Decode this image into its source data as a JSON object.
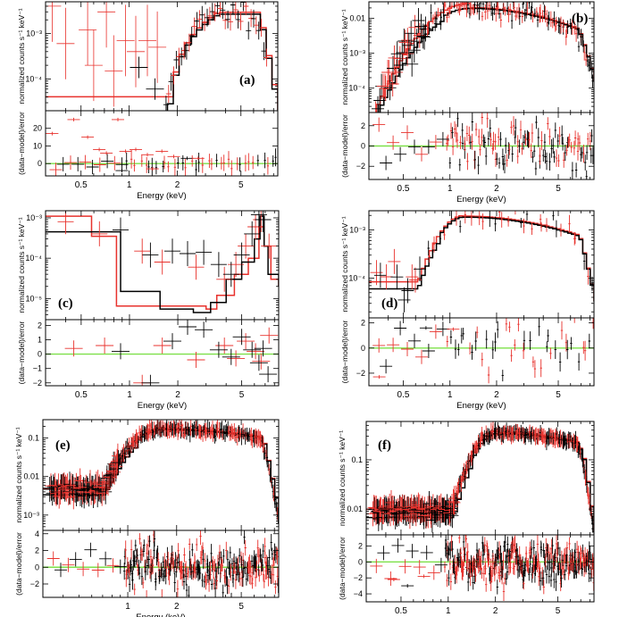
{
  "figure": {
    "common": {
      "ylabel_top": "normalized counts s⁻¹ keV⁻¹",
      "ylabel_bottom": "(data−model)/error",
      "xlabel": "Energy (keV)",
      "model_color": "#000000",
      "data2_color": "#e8322d",
      "zero_line_color": "#7ee04a"
    }
  },
  "chart_data": [
    {
      "id": "a",
      "label": "(a)",
      "type": "scatter",
      "x_scale": "log",
      "xlim": [
        0.3,
        8.5
      ],
      "x_ticks": [
        {
          "v": 0.5,
          "t": "0.5"
        },
        {
          "v": 1,
          "t": "1"
        },
        {
          "v": 2,
          "t": "2"
        },
        {
          "v": 5,
          "t": "5"
        }
      ],
      "top": {
        "y_scale": "log",
        "ylim": [
          2e-05,
          0.005
        ],
        "y_ticks": [
          {
            "v": 0.001,
            "t": "10⁻³"
          },
          {
            "v": 0.0001,
            "t": "10⁻⁴"
          }
        ]
      },
      "bottom": {
        "ylim": [
          -7,
          30
        ],
        "y_ticks": [
          {
            "v": 0,
            "t": "0"
          },
          {
            "v": 10,
            "t": "10"
          },
          {
            "v": 20,
            "t": "20"
          }
        ]
      },
      "spectrum": {
        "kind": "cut",
        "lo": 1.7,
        "hi": 3.5,
        "peak": 0.0028,
        "edge": 6.3,
        "drop": 7.5,
        "floor": 3e-05,
        "n": 40,
        "seed": 11,
        "noise": 0.35
      },
      "residuals": {
        "sigma": 1.5,
        "n": 36,
        "seed": 5,
        "outliers": [
          [
            0.33,
            17
          ],
          [
            0.45,
            25
          ],
          [
            0.55,
            15
          ],
          [
            0.65,
            8
          ],
          [
            0.72,
            6
          ],
          [
            0.85,
            25
          ],
          [
            0.95,
            7
          ],
          [
            1.1,
            8
          ],
          [
            1.3,
            5
          ],
          [
            1.6,
            7
          ],
          [
            1.9,
            4
          ],
          [
            2.3,
            3
          ],
          [
            2.7,
            3
          ],
          [
            0.9,
            -4
          ],
          [
            1.4,
            -3
          ]
        ]
      }
    },
    {
      "id": "b",
      "label": "(b)",
      "type": "scatter",
      "x_scale": "log",
      "xlim": [
        0.3,
        8.5
      ],
      "x_ticks": [
        {
          "v": 0.5,
          "t": "0.5"
        },
        {
          "v": 1,
          "t": "1"
        },
        {
          "v": 2,
          "t": "2"
        },
        {
          "v": 5,
          "t": "5"
        }
      ],
      "top": {
        "y_scale": "log",
        "ylim": [
          2e-05,
          0.03
        ],
        "y_ticks": [
          {
            "v": 0.01,
            "t": "0.01"
          },
          {
            "v": 0.001,
            "t": "10⁻³"
          },
          {
            "v": 0.0001,
            "t": "10⁻⁴"
          }
        ]
      },
      "bottom": {
        "ylim": [
          -3.3,
          3.3
        ],
        "y_ticks": [
          {
            "v": -2,
            "t": "−2"
          },
          {
            "v": 0,
            "t": "0"
          },
          {
            "v": 2,
            "t": "2"
          }
        ]
      },
      "spectrum": {
        "kind": "hump",
        "peak_e": 1.3,
        "peak": 0.02,
        "lo_w": 0.55,
        "hi_w": 1.15,
        "cut": 7.8,
        "n": 150,
        "seed": 23,
        "noise": 0.3,
        "red_factor": 1.35
      },
      "residuals": {
        "sigma": 1.3,
        "n": 120,
        "seed": 9,
        "outliers": []
      }
    },
    {
      "id": "c",
      "label": "(c)",
      "type": "scatter",
      "x_scale": "log",
      "xlim": [
        0.3,
        8.5
      ],
      "x_ticks": [
        {
          "v": 0.5,
          "t": "0.5"
        },
        {
          "v": 1,
          "t": "1"
        },
        {
          "v": 2,
          "t": "2"
        },
        {
          "v": 5,
          "t": "5"
        }
      ],
      "top": {
        "y_scale": "log",
        "ylim": [
          3e-06,
          0.0015
        ],
        "y_ticks": [
          {
            "v": 0.001,
            "t": "10⁻³"
          },
          {
            "v": 0.0001,
            "t": "10⁻⁴"
          },
          {
            "v": 1e-05,
            "t": "10⁻⁵"
          }
        ]
      },
      "bottom": {
        "ylim": [
          -2.2,
          2.4
        ],
        "y_ticks": [
          {
            "v": -2,
            "t": "−2"
          },
          {
            "v": -1,
            "t": "−1"
          },
          {
            "v": 0,
            "t": "0"
          },
          {
            "v": 1,
            "t": "1"
          },
          {
            "v": 2,
            "t": "2"
          }
        ]
      },
      "spectrum": {
        "kind": "sparse",
        "model_black": [
          [
            0.3,
            0.00045
          ],
          [
            0.85,
            0.00045
          ],
          [
            0.88,
            1.5e-05
          ],
          [
            1.5,
            1.5e-05
          ],
          [
            1.55,
            5.5e-06
          ],
          [
            2.5,
            4.5e-06
          ],
          [
            3.2,
            8e-06
          ],
          [
            4.0,
            3e-05
          ],
          [
            5.0,
            8e-05
          ],
          [
            6.0,
            0.0003
          ],
          [
            6.5,
            0.0011
          ],
          [
            6.9,
            0.0002
          ],
          [
            7.3,
            4e-05
          ],
          [
            8.5,
            2e-05
          ]
        ],
        "model_red": [
          [
            0.3,
            0.0011
          ],
          [
            0.55,
            0.0011
          ],
          [
            0.58,
            0.00035
          ],
          [
            0.8,
            0.00035
          ],
          [
            0.83,
            6.5e-06
          ],
          [
            2.0,
            6.5e-06
          ],
          [
            3.0,
            5.5e-06
          ],
          [
            3.5,
            1.2e-05
          ],
          [
            4.5,
            4e-05
          ],
          [
            5.5,
            0.0001
          ],
          [
            6.4,
            0.0006
          ],
          [
            6.9,
            0.0002
          ],
          [
            7.6,
            3e-05
          ],
          [
            8.5,
            2e-05
          ]
        ],
        "pts_black": [
          [
            0.88,
            0.0005
          ],
          [
            1.35,
            0.00012
          ],
          [
            1.85,
            0.00015
          ],
          [
            2.3,
            0.00013
          ],
          [
            2.9,
            0.00014
          ],
          [
            3.6,
            7e-05
          ],
          [
            4.3,
            4e-05
          ],
          [
            5.0,
            0.00012
          ],
          [
            5.8,
            0.0004
          ],
          [
            6.4,
            0.0012
          ],
          [
            6.8,
            0.0009
          ]
        ],
        "pts_red": [
          [
            0.4,
            0.0008
          ],
          [
            0.65,
            0.0004
          ],
          [
            1.2,
            0.00015
          ],
          [
            1.6,
            8e-05
          ],
          [
            2.6,
            6e-05
          ],
          [
            3.9,
            3e-05
          ],
          [
            4.6,
            7e-05
          ],
          [
            5.3,
            0.0002
          ],
          [
            6.1,
            0.0006
          ],
          [
            6.6,
            0.0009
          ],
          [
            7.4,
            0.0002
          ]
        ]
      },
      "residuals": {
        "kind": "sparse",
        "pts_black": [
          [
            0.88,
            0.2
          ],
          [
            1.35,
            -2.0
          ],
          [
            1.85,
            0.9
          ],
          [
            2.3,
            1.9
          ],
          [
            2.9,
            1.7
          ],
          [
            3.6,
            0.3
          ],
          [
            4.3,
            -0.2
          ],
          [
            5.0,
            1.2
          ],
          [
            5.8,
            0.3
          ],
          [
            6.4,
            -0.6
          ],
          [
            6.8,
            0.4
          ],
          [
            7.3,
            -1.4
          ]
        ],
        "pts_red": [
          [
            0.45,
            0.4
          ],
          [
            0.7,
            0.6
          ],
          [
            1.2,
            -2.0
          ],
          [
            1.6,
            0.6
          ],
          [
            2.6,
            -0.4
          ],
          [
            3.9,
            0.6
          ],
          [
            4.6,
            -0.3
          ],
          [
            5.3,
            0.9
          ],
          [
            6.1,
            0.2
          ],
          [
            6.6,
            -0.5
          ],
          [
            7.4,
            1.3
          ]
        ]
      }
    },
    {
      "id": "d",
      "label": "(d)",
      "type": "scatter",
      "x_scale": "log",
      "xlim": [
        0.3,
        8.5
      ],
      "x_ticks": [
        {
          "v": 0.5,
          "t": "0.5"
        },
        {
          "v": 1,
          "t": "1"
        },
        {
          "v": 2,
          "t": "2"
        },
        {
          "v": 5,
          "t": "5"
        }
      ],
      "top": {
        "y_scale": "log",
        "ylim": [
          1.5e-05,
          0.0025
        ],
        "y_ticks": [
          {
            "v": 0.001,
            "t": "10⁻³"
          },
          {
            "v": 0.0001,
            "t": "10⁻⁴"
          }
        ]
      },
      "bottom": {
        "ylim": [
          -3.0,
          2.4
        ],
        "y_ticks": [
          {
            "v": -2,
            "t": "−2"
          },
          {
            "v": 0,
            "t": "0"
          },
          {
            "v": 2,
            "t": "2"
          }
        ]
      },
      "spectrum": {
        "kind": "hump",
        "peak_e": 1.2,
        "peak": 0.0019,
        "lo_w": 0.4,
        "hi_w": 1.5,
        "cut": 7.9,
        "n": 45,
        "seed": 31,
        "noise": 0.28,
        "red_factor": 1.05,
        "floor": 8e-05
      },
      "residuals": {
        "sigma": 1.1,
        "n": 44,
        "seed": 13,
        "outliers": [
          [
            0.35,
            -2.3
          ],
          [
            0.7,
            1.6
          ],
          [
            1.05,
            1.5
          ]
        ]
      }
    },
    {
      "id": "e",
      "label": "(e)",
      "type": "scatter",
      "x_scale": "log",
      "xlim": [
        0.3,
        8.5
      ],
      "x_ticks": [
        {
          "v": 1,
          "t": "1"
        },
        {
          "v": 2,
          "t": "2"
        },
        {
          "v": 5,
          "t": "5"
        }
      ],
      "top": {
        "y_scale": "log",
        "ylim": [
          0.0004,
          0.3
        ],
        "y_ticks": [
          {
            "v": 0.1,
            "t": "0.1"
          },
          {
            "v": 0.01,
            "t": "0.01"
          },
          {
            "v": 0.001,
            "t": "10⁻³"
          }
        ]
      },
      "bottom": {
        "ylim": [
          -3.6,
          4.4
        ],
        "y_ticks": [
          {
            "v": -2,
            "t": "−2"
          },
          {
            "v": 0,
            "t": "0"
          },
          {
            "v": 2,
            "t": "2"
          },
          {
            "v": 4,
            "t": "4"
          }
        ]
      },
      "spectrum": {
        "kind": "hump",
        "peak_e": 1.6,
        "peak": 0.17,
        "lo_w": 0.45,
        "hi_w": 1.7,
        "cut": 8.0,
        "n": 300,
        "seed": 41,
        "noise": 0.12,
        "red_factor": 1.08,
        "floor": 0.0045,
        "edge_bump": 6.4
      },
      "residuals": {
        "sigma": 1.3,
        "n": 260,
        "seed": 17,
        "outliers": []
      }
    },
    {
      "id": "f",
      "label": "(f)",
      "type": "scatter",
      "x_scale": "log",
      "xlim": [
        0.3,
        8.5
      ],
      "x_ticks": [
        {
          "v": 0.5,
          "t": "0.5"
        },
        {
          "v": 1,
          "t": "1"
        },
        {
          "v": 2,
          "t": "2"
        },
        {
          "v": 5,
          "t": "5"
        }
      ],
      "top": {
        "y_scale": "log",
        "ylim": [
          0.003,
          0.6
        ],
        "y_ticks": [
          {
            "v": 0.1,
            "t": "0.1"
          },
          {
            "v": 0.01,
            "t": "0.01"
          }
        ]
      },
      "bottom": {
        "ylim": [
          -5.0,
          3.4
        ],
        "y_ticks": [
          {
            "v": -4,
            "t": "−4"
          },
          {
            "v": -2,
            "t": "−2"
          },
          {
            "v": 0,
            "t": "0"
          },
          {
            "v": 2,
            "t": "2"
          }
        ]
      },
      "spectrum": {
        "kind": "hump",
        "peak_e": 2.0,
        "peak": 0.35,
        "lo_w": 0.35,
        "hi_w": 1.5,
        "cut": 8.4,
        "n": 320,
        "seed": 53,
        "noise": 0.09,
        "red_factor": 1.1,
        "floor": 0.009,
        "edge_bump": 6.5
      },
      "residuals": {
        "sigma": 1.5,
        "n": 300,
        "seed": 19,
        "outliers": [
          [
            0.45,
            -2.2
          ],
          [
            0.55,
            -3.0
          ],
          [
            0.7,
            -1.8
          ]
        ]
      }
    }
  ]
}
